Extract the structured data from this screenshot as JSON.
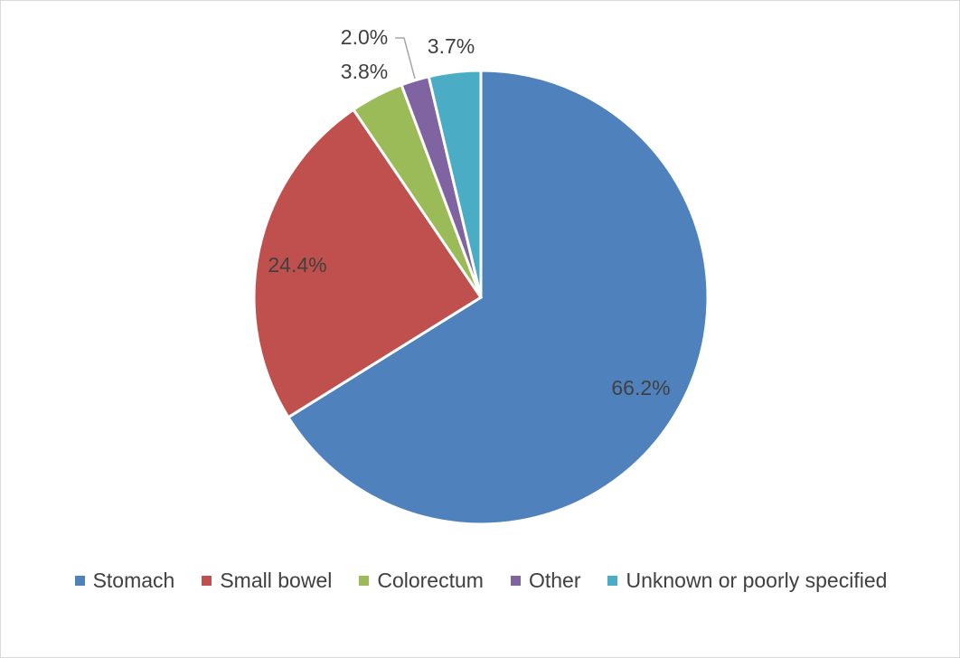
{
  "chart_data": {
    "type": "pie",
    "categories": [
      "Stomach",
      "Small bowel",
      "Colorectum",
      "Other",
      "Unknown or poorly specified"
    ],
    "values": [
      66.2,
      24.4,
      3.8,
      2.0,
      3.7
    ],
    "labels": [
      "66.2%",
      "24.4%",
      "3.8%",
      "2.0%",
      "3.7%"
    ],
    "colors": [
      "#4F81BD",
      "#C0504D",
      "#9BBB59",
      "#8064A2",
      "#4BACC6"
    ],
    "start": "12 o'clock",
    "direction": "clockwise",
    "legend_position": "bottom"
  }
}
